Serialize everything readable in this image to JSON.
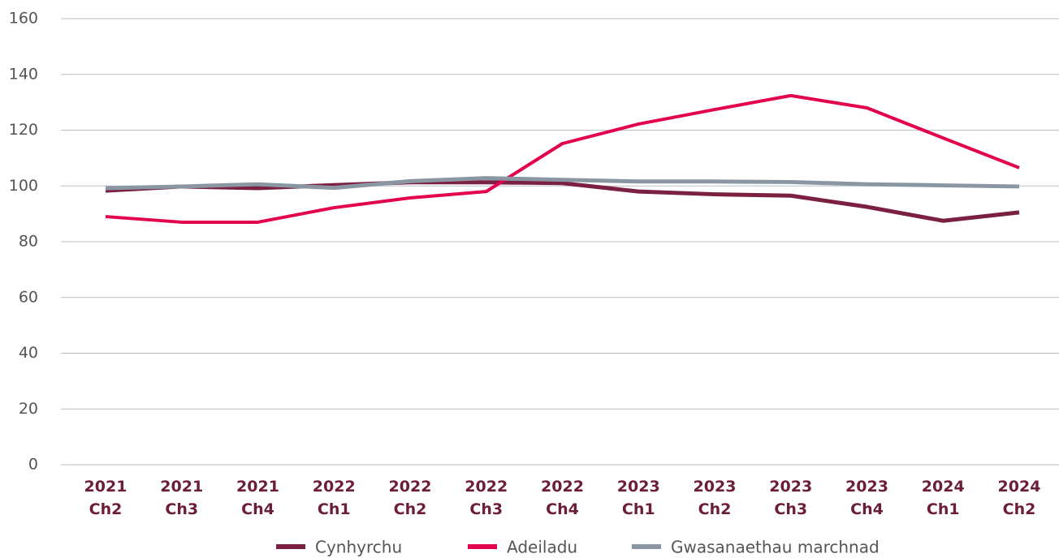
{
  "chart_data": {
    "type": "line",
    "categories": [
      "2021 Ch2",
      "2021 Ch3",
      "2021 Ch4",
      "2022 Ch1",
      "2022 Ch2",
      "2022 Ch3",
      "2022 Ch4",
      "2023 Ch1",
      "2023 Ch2",
      "2023 Ch3",
      "2023 Ch4",
      "2024 Ch1",
      "2024 Ch2"
    ],
    "series": [
      {
        "name": "Cynhyrchu",
        "color": "#7b2043",
        "values": [
          98.3,
          99.8,
          99.2,
          100.3,
          101.3,
          101.3,
          101,
          98,
          97,
          96.5,
          92.5,
          87.5,
          90.5
        ]
      },
      {
        "name": "Adeiladu",
        "color": "#e2004f",
        "values": [
          89,
          87,
          87,
          92.2,
          95.7,
          98,
          115.2,
          122.2,
          127.4,
          132.4,
          128,
          117.2,
          106.5
        ]
      },
      {
        "name": "Gwasanaethau marchnad",
        "color": "#8a97a2",
        "values": [
          99.2,
          99.8,
          100.6,
          99.3,
          101.7,
          102.8,
          102.2,
          101.6,
          101.6,
          101.4,
          100.6,
          100.2,
          99.8
        ]
      }
    ],
    "ylim": [
      0,
      160
    ],
    "yticks": [
      0,
      20,
      40,
      60,
      80,
      100,
      120,
      140,
      160
    ],
    "grid": true,
    "legend": "bottom"
  }
}
